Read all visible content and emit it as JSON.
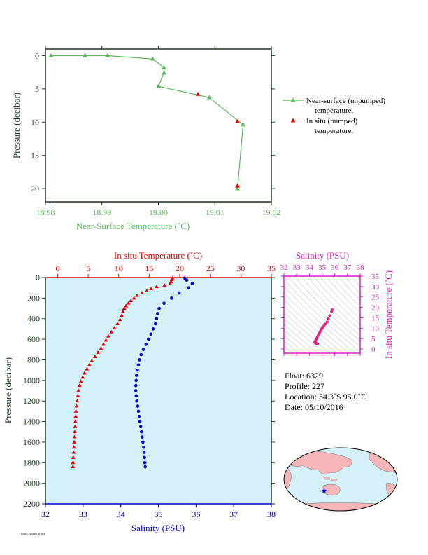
{
  "colors": {
    "near_surface": "#5cb85c",
    "insitu_temp": "#e00000",
    "salinity": "#0000cc",
    "ts_diagram": "#d020c0",
    "ts_points": "#e0207a",
    "panel_bg": "#d4f0f8",
    "axis_dark": "#1a3c1a",
    "float_marker": "#0000ff"
  },
  "chart_data": [
    {
      "type": "line",
      "xlabel": "Near-Surface Temperature (˚C)",
      "ylabel": "Pressure (decibar)",
      "xlim": [
        18.98,
        19.02
      ],
      "ylim": [
        22,
        -1
      ],
      "x_ticks": [
        "18.98",
        "18.99",
        "19.00",
        "19.01",
        "19.02"
      ],
      "y_ticks": [
        "0",
        "5",
        "10",
        "15",
        "20"
      ],
      "series": [
        {
          "name": "Near-surface (unpumped) temperature.",
          "marker": "triangle",
          "points": [
            [
              18.981,
              0.0
            ],
            [
              18.987,
              0.0
            ],
            [
              18.991,
              0.0
            ],
            [
              18.999,
              0.5
            ],
            [
              19.001,
              1.8
            ],
            [
              19.001,
              2.6
            ],
            [
              19.0,
              4.6
            ],
            [
              19.009,
              6.3
            ],
            [
              19.015,
              10.4
            ],
            [
              19.014,
              20.0
            ]
          ]
        },
        {
          "name": "In situ (pumped) temperature.",
          "marker": "triangle",
          "points": [
            [
              19.007,
              5.8
            ],
            [
              19.014,
              9.9
            ],
            [
              19.014,
              19.6
            ]
          ]
        }
      ],
      "legend": {
        "position": "right",
        "entries": [
          {
            "line1": "Near-surface (unpumped)",
            "line2": "temperature."
          },
          {
            "line1": "In situ (pumped)",
            "line2": "temperature."
          }
        ]
      }
    },
    {
      "type": "line",
      "top_xlabel": "In situ Temperature (˚C)",
      "bottom_xlabel": "Salinity (PSU)",
      "ylabel": "Pressure (decibar)",
      "top_xlim": [
        -2,
        35
      ],
      "bottom_xlim": [
        32,
        38
      ],
      "ylim": [
        2200,
        0
      ],
      "top_ticks": [
        "0",
        "5",
        "10",
        "15",
        "20",
        "25",
        "30",
        "35"
      ],
      "bottom_ticks": [
        "32",
        "33",
        "34",
        "35",
        "36",
        "37",
        "38"
      ],
      "y_ticks": [
        "0",
        "200",
        "400",
        "600",
        "800",
        "1000",
        "1200",
        "1400",
        "1600",
        "1800",
        "2000",
        "2200"
      ],
      "temperature": [
        [
          18.8,
          5
        ],
        [
          18.7,
          20
        ],
        [
          18.6,
          40
        ],
        [
          18.4,
          60
        ],
        [
          17.5,
          75
        ],
        [
          16.2,
          90
        ],
        [
          15.3,
          110
        ],
        [
          14.6,
          130
        ],
        [
          13.8,
          150
        ],
        [
          13.0,
          175
        ],
        [
          12.5,
          200
        ],
        [
          12.0,
          225
        ],
        [
          11.6,
          250
        ],
        [
          11.2,
          275
        ],
        [
          10.9,
          300
        ],
        [
          10.7,
          330
        ],
        [
          10.5,
          370
        ],
        [
          10.2,
          410
        ],
        [
          9.8,
          450
        ],
        [
          9.3,
          490
        ],
        [
          8.8,
          530
        ],
        [
          8.3,
          570
        ],
        [
          7.9,
          610
        ],
        [
          7.5,
          650
        ],
        [
          7.1,
          690
        ],
        [
          6.6,
          730
        ],
        [
          6.1,
          770
        ],
        [
          5.6,
          810
        ],
        [
          5.2,
          850
        ],
        [
          4.8,
          890
        ],
        [
          4.4,
          930
        ],
        [
          4.1,
          970
        ],
        [
          3.8,
          1010
        ],
        [
          3.6,
          1050
        ],
        [
          3.4,
          1100
        ],
        [
          3.3,
          1150
        ],
        [
          3.2,
          1200
        ],
        [
          3.1,
          1250
        ],
        [
          3.0,
          1300
        ],
        [
          2.95,
          1350
        ],
        [
          2.9,
          1400
        ],
        [
          2.85,
          1450
        ],
        [
          2.8,
          1500
        ],
        [
          2.75,
          1550
        ],
        [
          2.7,
          1600
        ],
        [
          2.65,
          1650
        ],
        [
          2.6,
          1700
        ],
        [
          2.55,
          1750
        ],
        [
          2.5,
          1800
        ],
        [
          2.5,
          1840
        ]
      ],
      "salinity": [
        [
          35.7,
          5
        ],
        [
          35.75,
          25
        ],
        [
          35.9,
          60
        ],
        [
          35.8,
          100
        ],
        [
          35.55,
          150
        ],
        [
          35.35,
          200
        ],
        [
          35.15,
          250
        ],
        [
          35.02,
          300
        ],
        [
          34.98,
          350
        ],
        [
          34.95,
          400
        ],
        [
          34.92,
          450
        ],
        [
          34.86,
          500
        ],
        [
          34.8,
          550
        ],
        [
          34.74,
          600
        ],
        [
          34.67,
          650
        ],
        [
          34.6,
          700
        ],
        [
          34.54,
          750
        ],
        [
          34.5,
          800
        ],
        [
          34.47,
          850
        ],
        [
          34.44,
          900
        ],
        [
          34.42,
          950
        ],
        [
          34.41,
          1000
        ],
        [
          34.4,
          1050
        ],
        [
          34.4,
          1100
        ],
        [
          34.41,
          1150
        ],
        [
          34.43,
          1200
        ],
        [
          34.45,
          1250
        ],
        [
          34.47,
          1300
        ],
        [
          34.49,
          1350
        ],
        [
          34.51,
          1400
        ],
        [
          34.53,
          1450
        ],
        [
          34.55,
          1500
        ],
        [
          34.57,
          1550
        ],
        [
          34.59,
          1600
        ],
        [
          34.61,
          1650
        ],
        [
          34.62,
          1700
        ],
        [
          34.63,
          1750
        ],
        [
          34.64,
          1800
        ],
        [
          34.65,
          1840
        ]
      ]
    },
    {
      "type": "scatter",
      "top_xlabel": "Salinity (PSU)",
      "right_ylabel": "In situ Temperature (˚C)",
      "xlim": [
        32,
        38
      ],
      "ylim": [
        -2,
        35
      ],
      "x_ticks": [
        "32",
        "33",
        "34",
        "35",
        "36",
        "37",
        "38"
      ],
      "y_ticks": [
        "0",
        "5",
        "10",
        "15",
        "20",
        "25",
        "30",
        "35"
      ],
      "points": [
        [
          35.8,
          18.8
        ],
        [
          35.75,
          18.0
        ],
        [
          35.6,
          16.0
        ],
        [
          35.5,
          14.5
        ],
        [
          35.4,
          13.0
        ],
        [
          35.25,
          12.0
        ],
        [
          35.15,
          11.2
        ],
        [
          35.05,
          10.5
        ],
        [
          35.0,
          10.0
        ],
        [
          34.95,
          9.5
        ],
        [
          34.9,
          9.0
        ],
        [
          34.85,
          8.3
        ],
        [
          34.78,
          7.5
        ],
        [
          34.7,
          6.6
        ],
        [
          34.62,
          5.6
        ],
        [
          34.55,
          4.8
        ],
        [
          34.5,
          4.1
        ],
        [
          34.45,
          3.6
        ],
        [
          34.42,
          3.2
        ],
        [
          34.45,
          3.0
        ],
        [
          34.5,
          2.8
        ],
        [
          34.55,
          2.7
        ],
        [
          34.6,
          2.6
        ],
        [
          34.65,
          2.5
        ]
      ]
    }
  ],
  "float_info": {
    "float": "Float:  6329",
    "profile": "Profile:  227",
    "location": "Location:  34.3˚S  95.0˚E",
    "date": "Date:  05/10/2016"
  },
  "map": {
    "marker_lat": -34.3,
    "marker_lon": 95.0,
    "marker_icon": "star-icon"
  },
  "footer_text": "PMEL ARGO NOBS"
}
